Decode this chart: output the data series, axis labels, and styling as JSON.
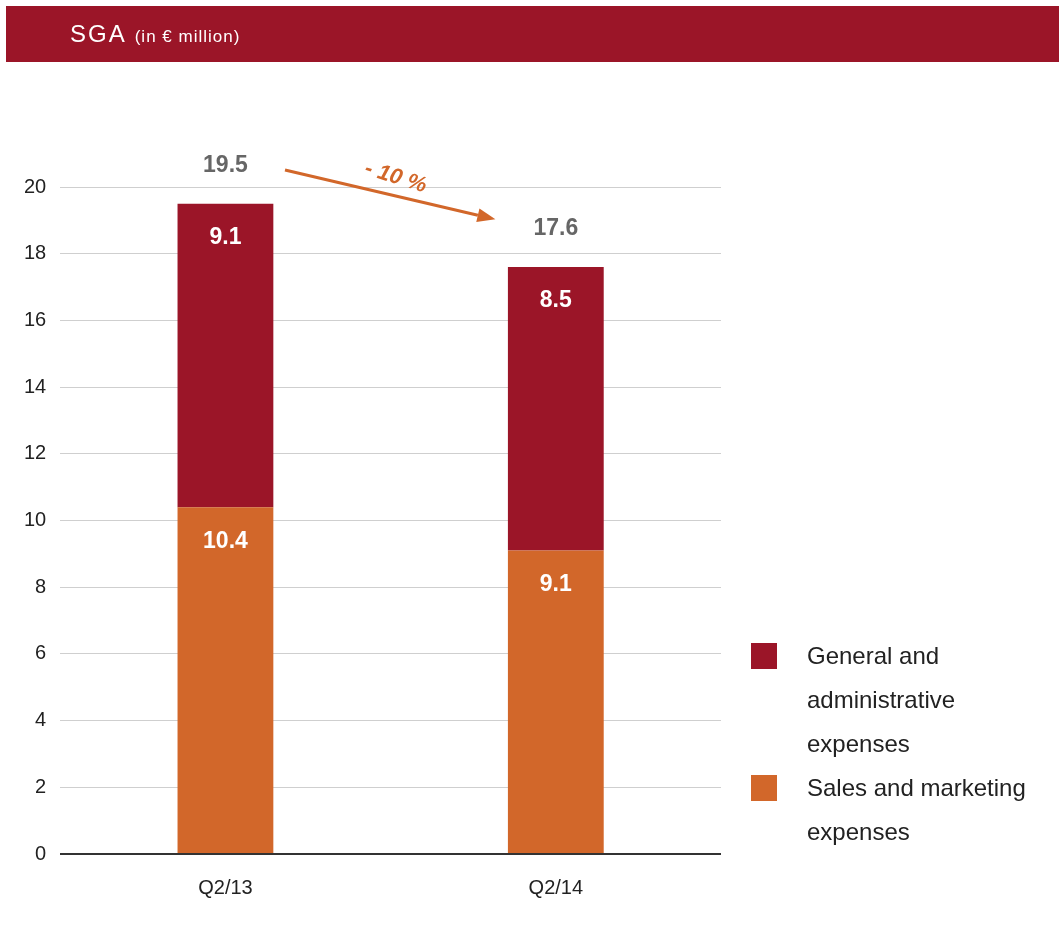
{
  "chart_data": {
    "type": "bar",
    "title": "SGA",
    "subtitle": "(in € million)",
    "categories": [
      "Q2/13",
      "Q2/14"
    ],
    "series": [
      {
        "name": "Sales and marketing expenses",
        "color": "#d2672a",
        "values": [
          10.4,
          9.1
        ]
      },
      {
        "name": "General and administrative expenses",
        "color": "#9b1528",
        "values": [
          9.1,
          8.5
        ]
      }
    ],
    "stacked": true,
    "data_labels": true,
    "totals": [
      "19.5",
      "17.6"
    ],
    "annotations": [
      "- 10 %"
    ],
    "ylim": [
      0,
      20
    ],
    "yticks": [
      0,
      2,
      4,
      6,
      8,
      10,
      12,
      14,
      16,
      18,
      20
    ],
    "grid": "y",
    "legend": "bottom right"
  }
}
